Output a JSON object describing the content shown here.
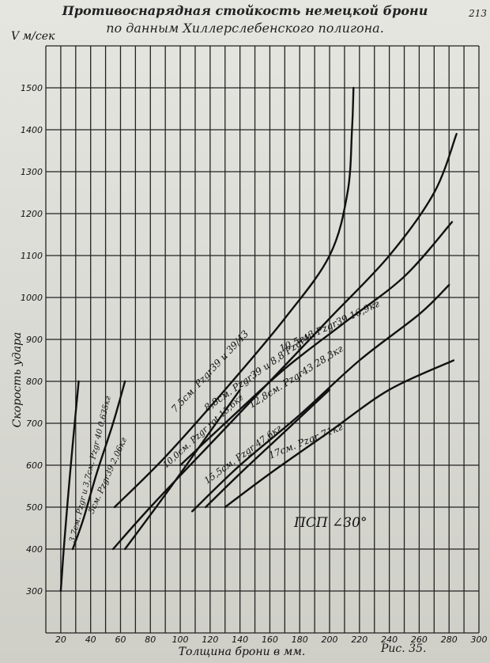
{
  "page": {
    "title_line1": "Противоснарядная стойкость немецкой брони",
    "title_line2": "по данным Хиллерслебенского полигона.",
    "page_number": "213",
    "figure_label": "Рис. 35."
  },
  "chart_data": {
    "type": "line",
    "title": "Противоснарядная стойкость немецкой брони по данным Хиллерслебенского полигона.",
    "xlabel": "Толщина брони в мм.",
    "ylabel": "Скорость удара",
    "yunit": "V м/сек",
    "xlim": [
      10,
      300
    ],
    "ylim": [
      200,
      1600
    ],
    "xticks": [
      20,
      40,
      60,
      80,
      100,
      120,
      140,
      160,
      180,
      200,
      220,
      240,
      260,
      280,
      300
    ],
    "yticks": [
      300,
      400,
      500,
      600,
      700,
      800,
      900,
      1000,
      1100,
      1200,
      1300,
      1400,
      1500
    ],
    "grid": true,
    "annotation": "ПСП ∠30°",
    "series": [
      {
        "name": "3,7см. Pzgr и 3,7см. Pzgr 40 0,635кг",
        "x": [
          20,
          22,
          25,
          28,
          32
        ],
        "y": [
          300,
          400,
          530,
          650,
          800
        ]
      },
      {
        "name": "5см. Pzgr39 2,06кг",
        "x": [
          28,
          35,
          44,
          55,
          63
        ],
        "y": [
          400,
          470,
          580,
          700,
          800
        ]
      },
      {
        "name": "7,5см. Pzgr39 и 39/43",
        "x": [
          56,
          90,
          130,
          170,
          200,
          212,
          215,
          216
        ],
        "y": [
          500,
          620,
          780,
          950,
          1100,
          1250,
          1400,
          1500
        ]
      },
      {
        "name": "8,8см. Pzgr39 и 8,8 Pzgr43",
        "x": [
          55,
          80,
          120,
          160,
          200,
          240,
          270,
          285
        ],
        "y": [
          400,
          500,
          650,
          800,
          950,
          1100,
          1250,
          1390
        ]
      },
      {
        "name": "10,0см. Pzgr rot 15,6кг",
        "x": [
          63,
          90,
          120,
          140
        ],
        "y": [
          400,
          530,
          680,
          780
        ]
      },
      {
        "name": "10,5см. Pzgr39 16,9кг",
        "x": [
          100,
          130,
          170,
          210,
          250,
          282
        ],
        "y": [
          600,
          700,
          830,
          940,
          1050,
          1180
        ]
      },
      {
        "name": "12,8см. Pzgr43 28,3кг",
        "x": [
          108,
          140,
          180,
          220,
          260,
          280
        ],
        "y": [
          490,
          600,
          720,
          850,
          960,
          1030
        ]
      },
      {
        "name": "15,5см. Pzgr 47,6кг",
        "x": [
          117,
          140,
          170,
          200
        ],
        "y": [
          500,
          580,
          680,
          780
        ]
      },
      {
        "name": "17см. Pzgr 71кг",
        "x": [
          130,
          160,
          200,
          240,
          283
        ],
        "y": [
          500,
          580,
          680,
          780,
          850
        ]
      }
    ],
    "curve_labels": [
      "3,7см. Pzgr и 3,7см. Pzgr 40 0,635кг",
      "5см. Pzgr39 2,06кг",
      "7,5см. Pzgr39 и 39/43",
      "8,8см. Pzgr39 и 8,8 Pzgr43",
      "10,0см. Pzgr rot 15,6кг",
      "10,5см. Pzgr39 16,9кг",
      "12,8см. Pzgr43 28,3кг",
      "15,5см. Pzgr 47,6кг",
      "17см. Pzgr 71кг"
    ]
  }
}
